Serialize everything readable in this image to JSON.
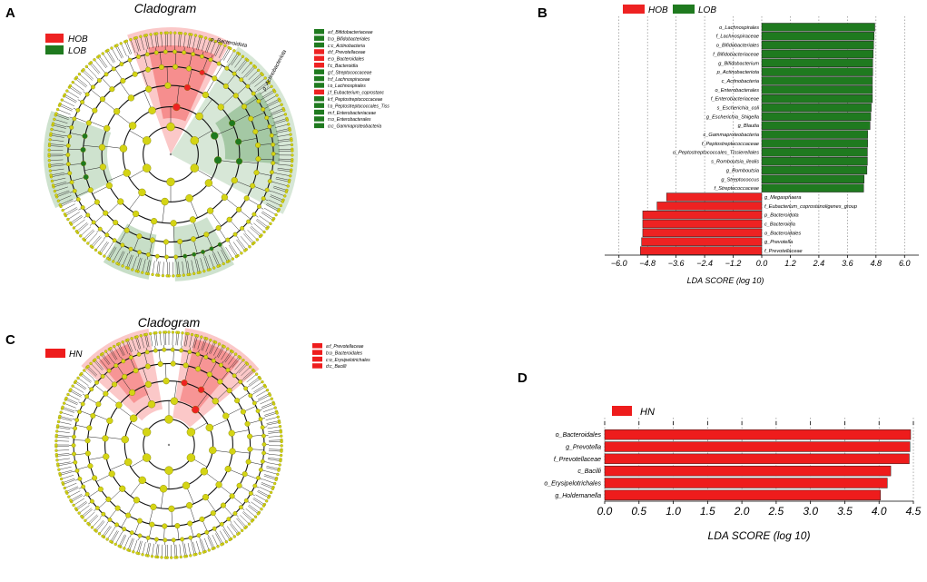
{
  "colors": {
    "hob": "#ee2222",
    "lob": "#1f7a1f",
    "hn": "#ee1c1c",
    "node": "#d4d414",
    "node_stroke": "#7c7c00",
    "ring": "#111111"
  },
  "panels": {
    "A": {
      "label": "A",
      "title": "Cladogram",
      "legend": [
        {
          "name": "HOB",
          "color": "#ee2222"
        },
        {
          "name": "LOB",
          "color": "#1f7a1f"
        }
      ],
      "clade_labels": [
        {
          "text": "p_Bacteroidota",
          "color": "#ee2222"
        },
        {
          "text": "p_Actinobacteriota",
          "color": "#1f7a1f"
        }
      ],
      "key": [
        {
          "text": "a:f_Bifidobacteriaceae",
          "color": "#1f7a1f"
        },
        {
          "text": "b:o_Bifidobacteriales",
          "color": "#1f7a1f"
        },
        {
          "text": "c:c_Actinobacteria",
          "color": "#1f7a1f"
        },
        {
          "text": "d:f_Prevotellaceae",
          "color": "#ee2222"
        },
        {
          "text": "e:o_Bacteroidales",
          "color": "#ee2222"
        },
        {
          "text": "f:c_Bacteroidia",
          "color": "#ee2222"
        },
        {
          "text": "g:f_Streptococcaceae",
          "color": "#1f7a1f"
        },
        {
          "text": "h:f_Lachnospiraceae",
          "color": "#1f7a1f"
        },
        {
          "text": "i:o_Lachnospirales",
          "color": "#1f7a1f"
        },
        {
          "text": "j:f_Eubacterium_coprostanc",
          "color": "#ee2222"
        },
        {
          "text": "k:f_Peptostreptococcaceae",
          "color": "#1f7a1f"
        },
        {
          "text": "l:o_Peptostreptococcales_Tiss",
          "color": "#1f7a1f"
        },
        {
          "text": "m:f_Enterobacteriaceae",
          "color": "#1f7a1f"
        },
        {
          "text": "n:o_Enterobacterales",
          "color": "#1f7a1f"
        },
        {
          "text": "o:c_Gammaproteobacteria",
          "color": "#1f7a1f"
        }
      ]
    },
    "B": {
      "label": "B"
    },
    "C": {
      "label": "C",
      "title": "Cladogram",
      "legend": [
        {
          "name": "HN",
          "color": "#ee1c1c"
        }
      ],
      "key": [
        {
          "text": "a:f_Prevotellaceae",
          "color": "#ee1c1c"
        },
        {
          "text": "b:o_Bacteroidales",
          "color": "#ee1c1c"
        },
        {
          "text": "c:o_Erysipelotrichales",
          "color": "#ee1c1c"
        },
        {
          "text": "d:c_Bacilli",
          "color": "#ee1c1c"
        }
      ]
    },
    "D": {
      "label": "D"
    }
  },
  "chart_data": [
    {
      "panel": "B",
      "type": "bar",
      "orientation": "horizontal",
      "legend": [
        {
          "name": "HOB",
          "color": "#ee2222"
        },
        {
          "name": "LOB",
          "color": "#1f7a1f"
        }
      ],
      "xlabel": "LDA SCORE (log 10)",
      "xlim": [
        -6.6,
        6.6
      ],
      "xticks": [
        -6.0,
        -4.8,
        -3.6,
        -2.4,
        -1.2,
        0.0,
        1.2,
        2.4,
        3.6,
        4.8,
        6.0
      ],
      "xtick_labels": [
        "−6.0",
        "−4.8",
        "−3.6",
        "−2.4",
        "−1.2",
        "0.0",
        "1.2",
        "2.4",
        "3.6",
        "4.8",
        "6.0"
      ],
      "categories": [
        "o_Lachnospirales",
        "f_Lachnospiraceae",
        "o_Bifidobacteriales",
        "f_Bifidobacteriaceae",
        "g_Bifidobacterium",
        "p_Actinobacteriota",
        "c_Actinobacteria",
        "o_Enterobacterales",
        "f_Enterobacteriaceae",
        "s_Escherichia_coli",
        "g_Escherichia_Shigella",
        "g_Blautia",
        "c_Gammaproteobacteria",
        "f_Peptostreptococcaceae",
        "o_Peptostreptococcales_Tissierellales",
        "s_Romboutsia_ilealis",
        "g_Romboutsia",
        "g_Streptococcus",
        "f_Streptococcaceae",
        "g_Megasphaera",
        "f_Eubacterium_coprostanoligenes_group",
        "p_Bacteroidota",
        "c_Bacteroidia",
        "o_Bacteroidales",
        "g_Prevotella",
        "f_Prevotellaceae"
      ],
      "values": [
        4.75,
        4.72,
        4.7,
        4.68,
        4.66,
        4.66,
        4.65,
        4.65,
        4.65,
        4.6,
        4.58,
        4.55,
        4.45,
        4.45,
        4.44,
        4.44,
        4.42,
        4.3,
        4.28,
        -4.0,
        -4.4,
        -5.0,
        -5.0,
        -5.0,
        -5.05,
        -5.1
      ],
      "groups": [
        "LOB",
        "LOB",
        "LOB",
        "LOB",
        "LOB",
        "LOB",
        "LOB",
        "LOB",
        "LOB",
        "LOB",
        "LOB",
        "LOB",
        "LOB",
        "LOB",
        "LOB",
        "LOB",
        "LOB",
        "LOB",
        "LOB",
        "HOB",
        "HOB",
        "HOB",
        "HOB",
        "HOB",
        "HOB",
        "HOB"
      ]
    },
    {
      "panel": "D",
      "type": "bar",
      "orientation": "horizontal",
      "legend": [
        {
          "name": "HN",
          "color": "#ee1c1c"
        }
      ],
      "xlabel": "LDA SCORE (log 10)",
      "xlim": [
        0,
        4.5
      ],
      "xticks": [
        0.0,
        0.5,
        1.0,
        1.5,
        2.0,
        2.5,
        3.0,
        3.5,
        4.0,
        4.5
      ],
      "xtick_labels": [
        "0.0",
        "0.5",
        "1.0",
        "1.5",
        "2.0",
        "2.5",
        "3.0",
        "3.5",
        "4.0",
        "4.5"
      ],
      "categories": [
        "o_Bacteroidales",
        "g_Prevotella",
        "f_Prevotellaceae",
        "c_Bacilli",
        "o_Erysipelotrichales",
        "g_Holdemanella"
      ],
      "values": [
        4.46,
        4.45,
        4.44,
        4.17,
        4.12,
        4.02
      ],
      "groups": [
        "HN",
        "HN",
        "HN",
        "HN",
        "HN",
        "HN"
      ]
    }
  ]
}
